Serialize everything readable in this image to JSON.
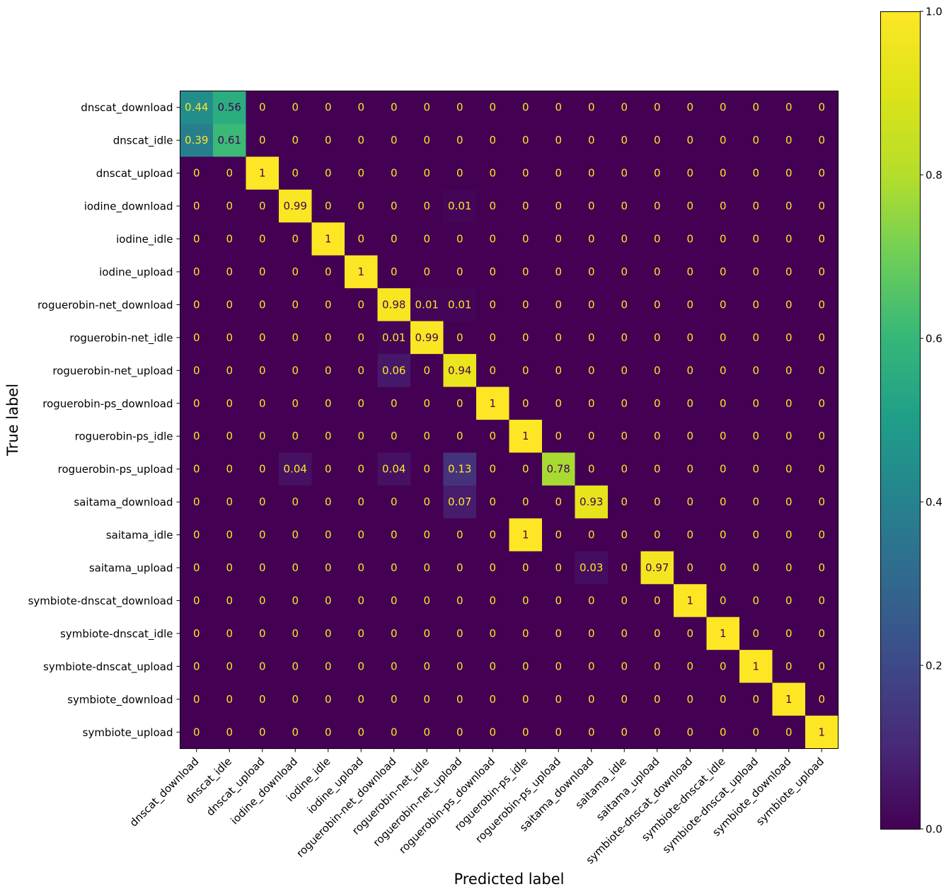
{
  "chart_data": {
    "type": "heatmap",
    "xlabel": "Predicted label",
    "ylabel": "True label",
    "categories": [
      "dnscat_download",
      "dnscat_idle",
      "dnscat_upload",
      "iodine_download",
      "iodine_idle",
      "iodine_upload",
      "roguerobin-net_download",
      "roguerobin-net_idle",
      "roguerobin-net_upload",
      "roguerobin-ps_download",
      "roguerobin-ps_idle",
      "roguerobin-ps_upload",
      "saitama_download",
      "saitama_idle",
      "saitama_upload",
      "symbiote-dnscat_download",
      "symbiote-dnscat_idle",
      "symbiote-dnscat_upload",
      "symbiote_download",
      "symbiote_upload"
    ],
    "matrix": [
      [
        0.44,
        0.56,
        0,
        0,
        0,
        0,
        0,
        0,
        0,
        0,
        0,
        0,
        0,
        0,
        0,
        0,
        0,
        0,
        0,
        0
      ],
      [
        0.39,
        0.61,
        0,
        0,
        0,
        0,
        0,
        0,
        0,
        0,
        0,
        0,
        0,
        0,
        0,
        0,
        0,
        0,
        0,
        0
      ],
      [
        0,
        0,
        1,
        0,
        0,
        0,
        0,
        0,
        0,
        0,
        0,
        0,
        0,
        0,
        0,
        0,
        0,
        0,
        0,
        0
      ],
      [
        0,
        0,
        0,
        0.99,
        0,
        0,
        0,
        0,
        0.01,
        0,
        0,
        0,
        0,
        0,
        0,
        0,
        0,
        0,
        0,
        0
      ],
      [
        0,
        0,
        0,
        0,
        1,
        0,
        0,
        0,
        0,
        0,
        0,
        0,
        0,
        0,
        0,
        0,
        0,
        0,
        0,
        0
      ],
      [
        0,
        0,
        0,
        0,
        0,
        1,
        0,
        0,
        0,
        0,
        0,
        0,
        0,
        0,
        0,
        0,
        0,
        0,
        0,
        0
      ],
      [
        0,
        0,
        0,
        0,
        0,
        0,
        0.98,
        0.01,
        0.01,
        0,
        0,
        0,
        0,
        0,
        0,
        0,
        0,
        0,
        0,
        0
      ],
      [
        0,
        0,
        0,
        0,
        0,
        0,
        0.01,
        0.99,
        0,
        0,
        0,
        0,
        0,
        0,
        0,
        0,
        0,
        0,
        0,
        0
      ],
      [
        0,
        0,
        0,
        0,
        0,
        0,
        0.06,
        0,
        0.94,
        0,
        0,
        0,
        0,
        0,
        0,
        0,
        0,
        0,
        0,
        0
      ],
      [
        0,
        0,
        0,
        0,
        0,
        0,
        0,
        0,
        0,
        1,
        0,
        0,
        0,
        0,
        0,
        0,
        0,
        0,
        0,
        0
      ],
      [
        0,
        0,
        0,
        0,
        0,
        0,
        0,
        0,
        0,
        0,
        1,
        0,
        0,
        0,
        0,
        0,
        0,
        0,
        0,
        0
      ],
      [
        0,
        0,
        0,
        0.04,
        0,
        0,
        0.04,
        0,
        0.13,
        0,
        0,
        0.78,
        0,
        0,
        0,
        0,
        0,
        0,
        0,
        0
      ],
      [
        0,
        0,
        0,
        0,
        0,
        0,
        0,
        0,
        0.07,
        0,
        0,
        0,
        0.93,
        0,
        0,
        0,
        0,
        0,
        0,
        0
      ],
      [
        0,
        0,
        0,
        0,
        0,
        0,
        0,
        0,
        0,
        0,
        1,
        0,
        0,
        0,
        0,
        0,
        0,
        0,
        0,
        0
      ],
      [
        0,
        0,
        0,
        0,
        0,
        0,
        0,
        0,
        0,
        0,
        0,
        0,
        0.03,
        0,
        0.97,
        0,
        0,
        0,
        0,
        0
      ],
      [
        0,
        0,
        0,
        0,
        0,
        0,
        0,
        0,
        0,
        0,
        0,
        0,
        0,
        0,
        0,
        1,
        0,
        0,
        0,
        0
      ],
      [
        0,
        0,
        0,
        0,
        0,
        0,
        0,
        0,
        0,
        0,
        0,
        0,
        0,
        0,
        0,
        0,
        1,
        0,
        0,
        0
      ],
      [
        0,
        0,
        0,
        0,
        0,
        0,
        0,
        0,
        0,
        0,
        0,
        0,
        0,
        0,
        0,
        0,
        0,
        1,
        0,
        0
      ],
      [
        0,
        0,
        0,
        0,
        0,
        0,
        0,
        0,
        0,
        0,
        0,
        0,
        0,
        0,
        0,
        0,
        0,
        0,
        1,
        0
      ],
      [
        0,
        0,
        0,
        0,
        0,
        0,
        0,
        0,
        0,
        0,
        0,
        0,
        0,
        0,
        0,
        0,
        0,
        0,
        0,
        1
      ]
    ],
    "colormap": "viridis",
    "colorbar": {
      "range": [
        0,
        1
      ],
      "ticks": [
        0.0,
        0.2,
        0.4,
        0.6,
        0.8,
        1.0
      ],
      "tick_labels": [
        "0.0",
        "0.2",
        "0.4",
        "0.6",
        "0.8",
        "1.0"
      ]
    },
    "grid": false,
    "text_colors": {
      "on_dark": "#fde725",
      "on_light": "#440154"
    }
  }
}
